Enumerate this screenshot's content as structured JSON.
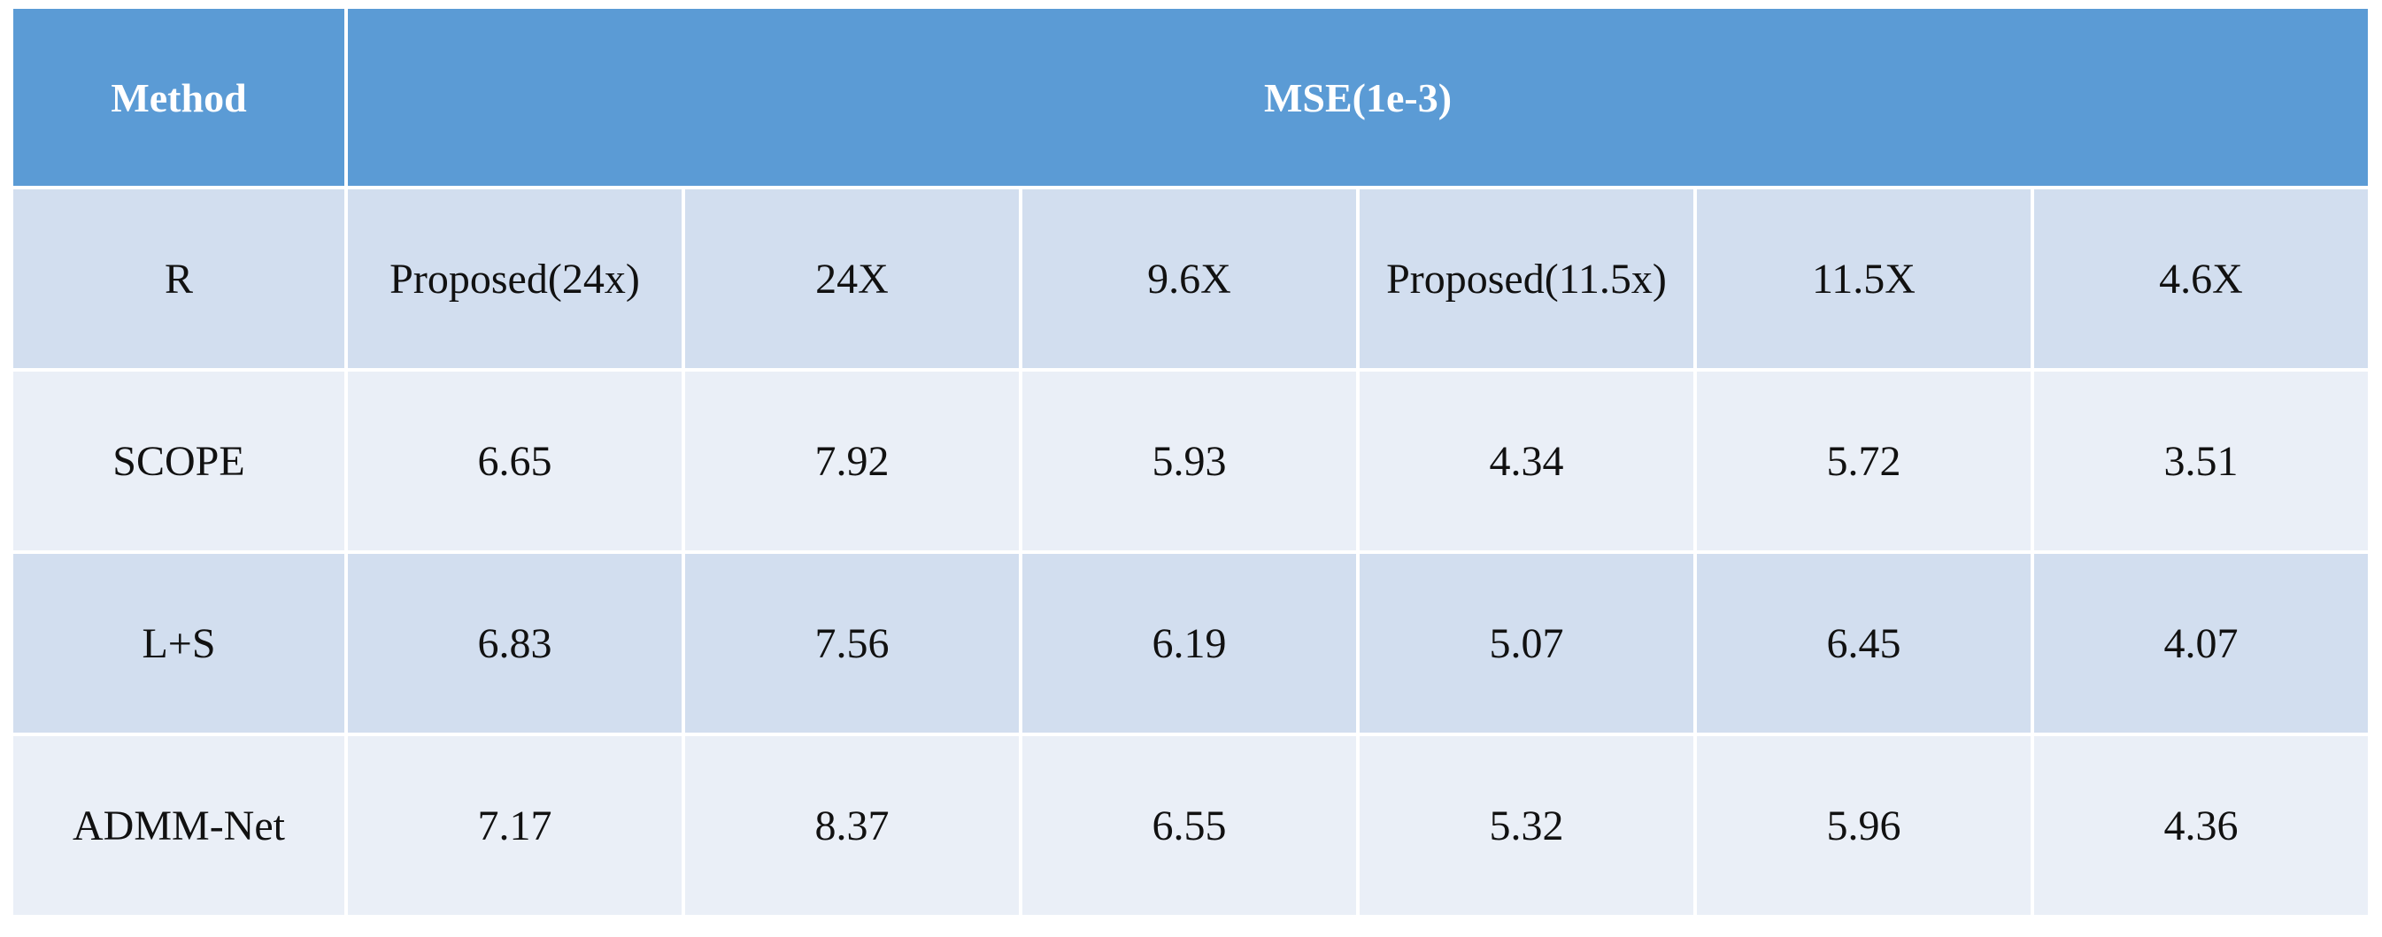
{
  "table": {
    "header": {
      "method": "Method",
      "metric": "MSE(1e-3)"
    },
    "rows": [
      [
        "R",
        "Proposed(24x)",
        "24X",
        "9.6X",
        "Proposed(11.5x)",
        "11.5X",
        "4.6X"
      ],
      [
        "SCOPE",
        6.65,
        7.92,
        5.93,
        4.34,
        5.72,
        3.51
      ],
      [
        "L+S",
        6.83,
        7.56,
        6.19,
        5.07,
        6.45,
        4.07
      ],
      [
        "ADMM-Net",
        7.17,
        8.37,
        6.55,
        5.32,
        5.96,
        4.36
      ]
    ]
  }
}
